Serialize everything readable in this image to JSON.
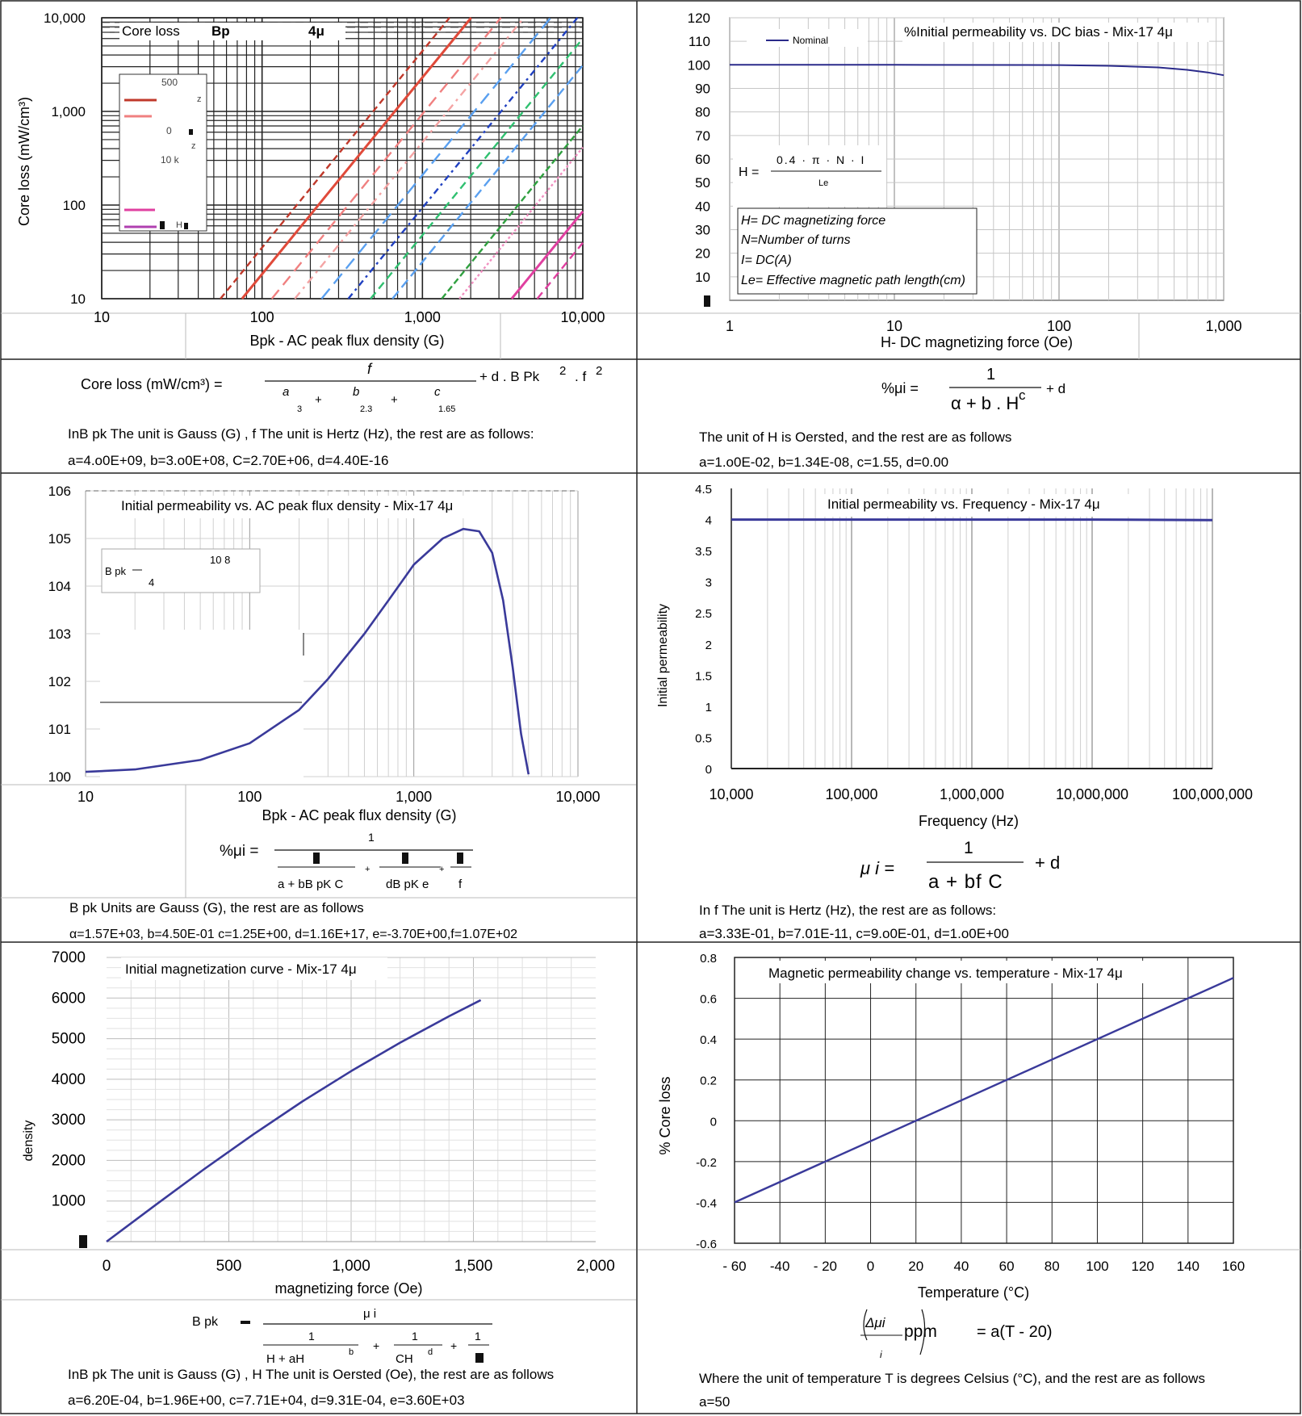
{
  "panels": {
    "core_loss": {
      "chart_data": {
        "type": "line",
        "title": "Core loss",
        "title_parts": [
          "Bp",
          "4μ"
        ],
        "xlabel": "Bpk - AC peak flux density (G)",
        "ylabel": "Core loss (mW/cm³)",
        "xscale": "log",
        "yscale": "log",
        "xlim": [
          10,
          10000
        ],
        "ylim": [
          10,
          10000
        ],
        "x_ticks": [
          "10",
          "100",
          "1,000",
          "10,000"
        ],
        "y_ticks": [
          "10",
          "100",
          "1,000",
          "10,000"
        ],
        "legend_fragments": [
          "500",
          "z",
          "0",
          "z",
          "10 k",
          "H"
        ],
        "grid": true
      },
      "formula": {
        "lhs": "Core loss (mW/cm³) =",
        "num": "f",
        "den_terms": [
          "a",
          "b",
          "c"
        ],
        "den_pow": [
          "3",
          "2.3",
          "1.65"
        ],
        "tail": "+ d . B Pk",
        "tail_exp": "2",
        "tail_f": ". f",
        "tail_f_exp": "2"
      },
      "note": "InB pk The unit is Gauss (G) , f The unit is Hertz (Hz), the rest are as follows:",
      "coeffs": "a=4.o0E+09,  b=3.o0E+08,  C=2.70E+06,  d=4.40E-16"
    },
    "dc_bias": {
      "chart_data": {
        "type": "line",
        "title": "%Initial permeability vs. DC bias - Mix-17 4μ",
        "xlabel": "H- DC magnetizing force (Oe)",
        "ylabel": "",
        "xscale": "log",
        "xlim": [
          1,
          1000
        ],
        "ylim": [
          0,
          120
        ],
        "x_ticks": [
          "1",
          "10",
          "100",
          "1,000"
        ],
        "y_ticks": [
          "10",
          "20",
          "30",
          "40",
          "50",
          "60",
          "70",
          "80",
          "90",
          "100",
          "110",
          "120"
        ],
        "series": [
          {
            "name": "Nominal",
            "x": [
              1,
              10,
              100,
              200,
              400,
              600,
              800,
              1000
            ],
            "y": [
              100,
              100,
              99.9,
              99.6,
              98.9,
              97.9,
              96.8,
              95.6
            ]
          }
        ],
        "legend_position": "top-left",
        "grid": true
      },
      "inset": {
        "formula_lhs": "H =",
        "formula_num": "0.4 · π · N · I",
        "formula_den": "Le",
        "defs": [
          "H= DC magnetizing force",
          "N=Number of turns",
          "I= DC(A)",
          "Le= Effective magnetic path length(cm)"
        ]
      },
      "formula": {
        "lhs": "%μi =",
        "num": "1",
        "den": "α + b . H",
        "den_exp": "c",
        "tail": "+ d"
      },
      "note": "The unit of H is Oersted, and the rest are as follows",
      "coeffs": "a=1.o0E-02,  b=1.34E-08,  c=1.55,  d=0.00"
    },
    "ac_flux": {
      "chart_data": {
        "type": "line",
        "title": "Initial permeability vs. AC peak flux density - Mix-17 4μ",
        "xlabel": "Bpk - AC peak flux density (G)",
        "ylabel": "",
        "xscale": "log",
        "xlim": [
          10,
          10000
        ],
        "ylim": [
          100,
          106
        ],
        "x_ticks": [
          "10",
          "100",
          "1,000",
          "10,000"
        ],
        "y_ticks": [
          "100",
          "101",
          "102",
          "103",
          "104",
          "105",
          "106"
        ],
        "series": [
          {
            "name": "",
            "x": [
              10,
              20,
              50,
              100,
              200,
              300,
              500,
              700,
              1000,
              1500,
              2000,
              2500,
              3000,
              3500,
              4000,
              4500,
              5000
            ],
            "y": [
              100.1,
              100.15,
              100.35,
              100.7,
              101.4,
              102.05,
              103.0,
              103.7,
              104.45,
              105.0,
              105.2,
              105.15,
              104.7,
              103.7,
              102.3,
              100.9,
              100.05
            ]
          }
        ],
        "grid": true
      },
      "inset_text": [
        "B pk",
        "4",
        "10 8"
      ],
      "formula": {
        "lhs": "%μi =",
        "num": "1",
        "den": "a + bB pK C",
        "den2": "dB pK e",
        "den3": "f"
      },
      "note": "B pk Units are Gauss (G), the rest are as follows",
      "coeffs": "α=1.57E+03, b=4.50E-01  c=1.25E+00, d=1.16E+17,  e=-3.70E+00,f=1.07E+02"
    },
    "frequency": {
      "chart_data": {
        "type": "line",
        "title": "Initial permeability vs. Frequency - Mix-17 4μ",
        "xlabel": "Frequency (Hz)",
        "ylabel": "Initial permeability",
        "xscale": "log",
        "xlim": [
          10000,
          100000000
        ],
        "ylim": [
          0,
          4.5
        ],
        "x_ticks": [
          "10,000",
          "100,000",
          "1,000,000",
          "10,000,000",
          "100,000,000"
        ],
        "y_ticks": [
          "0",
          "0.5",
          "1",
          "1.5",
          "2",
          "2.5",
          "3",
          "3.5",
          "4",
          "4.5"
        ],
        "series": [
          {
            "name": "",
            "x": [
              10000,
              100000,
              1000000,
              10000000,
              100000000
            ],
            "y": [
              4,
              4,
              4,
              4,
              3.99
            ]
          }
        ],
        "grid": true
      },
      "formula": {
        "lhs": "μ i =",
        "num": "1",
        "den": "a + bf C",
        "tail": "+ d"
      },
      "note": "In f The unit is Hertz (Hz), the rest are as follows:",
      "coeffs": "a=3.33E-01,   b=7.01E-11,   c=9.o0E-01,   d=1.o0E+00"
    },
    "magnetization": {
      "chart_data": {
        "type": "line",
        "title": "Initial magnetization curve - Mix-17 4μ",
        "xlabel": "magnetizing force (Oe)",
        "ylabel": "density",
        "xlim": [
          0,
          2000
        ],
        "ylim": [
          0,
          7000
        ],
        "x_ticks": [
          "0",
          "500",
          "1,000",
          "1,500",
          "2,000"
        ],
        "y_ticks": [
          "1000",
          "2000",
          "3000",
          "4000",
          "5000",
          "6000",
          "7000"
        ],
        "series": [
          {
            "name": "",
            "x": [
              0,
              200,
              400,
              600,
              800,
              1000,
              1200,
              1400,
              1530
            ],
            "y": [
              0,
              900,
              1790,
              2640,
              3450,
              4200,
              4900,
              5550,
              5950
            ]
          }
        ],
        "grid": true
      },
      "formula": {
        "lhs": "B pk",
        "eq": "=",
        "num": "μ i",
        "t1n": "1",
        "t1d": "H + aH",
        "t1e": "b",
        "t2n": "1",
        "t2d": "CH",
        "t2e": "d",
        "t3n": "1"
      },
      "note": "InB pk The unit is Gauss (G) , H The unit is Oersted (Oe), the rest are as follows",
      "coeffs": "a=6.20E-04,  b=1.96E+00,  c=7.71E+04,  d=9.31E-04,  e=3.60E+03"
    },
    "temperature": {
      "chart_data": {
        "type": "line",
        "title": "Magnetic permeability change vs. temperature - Mix-17 4μ",
        "xlabel": "Temperature (°C)",
        "ylabel": "% Core loss",
        "xlim": [
          -60,
          160
        ],
        "ylim": [
          -0.6,
          0.8
        ],
        "x_ticks": [
          "- 60",
          "-40",
          "- 20",
          "0",
          "20",
          "40",
          "60",
          "80",
          "100",
          "120",
          "140",
          "160"
        ],
        "y_ticks": [
          "-0.6",
          "-0.4",
          "-0.2",
          "0",
          "0.2",
          "0.4",
          "0.6",
          "0.8"
        ],
        "series": [
          {
            "name": "",
            "x": [
              -60,
              160
            ],
            "y": [
              -0.4,
              0.7
            ]
          }
        ],
        "grid": true
      },
      "formula": {
        "lhs": "Δμi",
        "lhs_den": "i",
        "unit": "ppm",
        "rhs": "= a(T - 20)"
      },
      "note": "Where the unit of temperature T is degrees Celsius (°C), and the rest are as follows",
      "coeffs": "a=50"
    }
  },
  "colors": {
    "curve": "#3a3a9a",
    "grid": "#b8b8b8",
    "border": "#222222",
    "loss_series": [
      "#c0392b",
      "#e04a3a",
      "#f08080",
      "#f4a4a4",
      "#5aa0f0",
      "#2040c0",
      "#30c070",
      "#30a040",
      "#f090c0",
      "#e040a0"
    ]
  }
}
